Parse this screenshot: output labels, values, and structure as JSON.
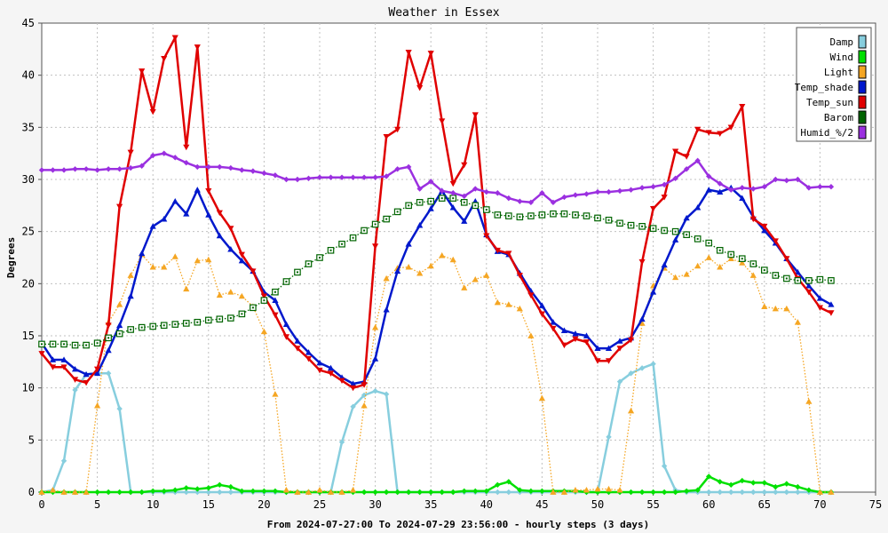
{
  "chart_data": {
    "type": "line",
    "title": "Weather in Essex",
    "ylabel": "Degrees",
    "xlabel": "From 2024-07-27:00 To 2024-07-29 23:56:00 - hourly steps (3 days)",
    "xlim": [
      0,
      75
    ],
    "ylim": [
      0,
      45
    ],
    "xticks": [
      0,
      5,
      10,
      15,
      20,
      25,
      30,
      35,
      40,
      45,
      50,
      55,
      60,
      65,
      70,
      75
    ],
    "yticks": [
      0,
      5,
      10,
      15,
      20,
      25,
      30,
      35,
      40,
      45
    ],
    "grid": true,
    "legend_position": "top-right",
    "series": [
      {
        "name": "Damp",
        "color": "#87CEDE",
        "marker": "diamond",
        "style": "solid",
        "x": [
          0,
          1,
          2,
          3,
          4,
          5,
          6,
          7,
          8,
          9,
          10,
          11,
          12,
          13,
          14,
          15,
          16,
          17,
          18,
          19,
          20,
          21,
          22,
          23,
          24,
          25,
          26,
          27,
          28,
          29,
          30,
          31,
          32,
          33,
          34,
          35,
          36,
          37,
          38,
          39,
          40,
          41,
          42,
          43,
          44,
          45,
          46,
          47,
          48,
          49,
          50,
          51,
          52,
          53,
          54,
          55,
          56,
          57,
          58,
          59,
          60,
          61,
          62,
          63,
          64,
          65,
          66,
          67,
          68,
          69,
          70,
          71
        ],
        "values": [
          0,
          0.2,
          3,
          9.8,
          11.3,
          11.4,
          11.4,
          8,
          0,
          0,
          0,
          0,
          0,
          0,
          0,
          0,
          0,
          0,
          0,
          0,
          0,
          0,
          0,
          0,
          0,
          0,
          0,
          4.8,
          8.2,
          9.3,
          9.7,
          9.4,
          0,
          0,
          0,
          0,
          0,
          0,
          0,
          0,
          0,
          0,
          0,
          0,
          0,
          0,
          0,
          0,
          0,
          0,
          0,
          5.3,
          10.6,
          11.4,
          11.9,
          12.3,
          2.5,
          0.2,
          0,
          0,
          0,
          0,
          0,
          0,
          0,
          0,
          0,
          0,
          0,
          0,
          0,
          0
        ]
      },
      {
        "name": "Wind",
        "color": "#00E000",
        "marker": "diamond",
        "style": "solid",
        "x": [
          0,
          1,
          2,
          3,
          4,
          5,
          6,
          7,
          8,
          9,
          10,
          11,
          12,
          13,
          14,
          15,
          16,
          17,
          18,
          19,
          20,
          21,
          22,
          23,
          24,
          25,
          26,
          27,
          28,
          29,
          30,
          31,
          32,
          33,
          34,
          35,
          36,
          37,
          38,
          39,
          40,
          41,
          42,
          43,
          44,
          45,
          46,
          47,
          48,
          49,
          50,
          51,
          52,
          53,
          54,
          55,
          56,
          57,
          58,
          59,
          60,
          61,
          62,
          63,
          64,
          65,
          66,
          67,
          68,
          69,
          70,
          71
        ],
        "values": [
          0,
          0,
          0,
          0,
          0,
          0,
          0,
          0,
          0,
          0,
          0.1,
          0.1,
          0.2,
          0.4,
          0.3,
          0.4,
          0.7,
          0.5,
          0.1,
          0.1,
          0.1,
          0.1,
          0,
          0,
          0,
          0,
          0,
          0,
          0,
          0,
          0,
          0,
          0,
          0,
          0,
          0,
          0,
          0,
          0.1,
          0.1,
          0.1,
          0.7,
          1,
          0.2,
          0.1,
          0.1,
          0.1,
          0.1,
          0.1,
          0,
          0,
          0,
          0,
          0,
          0,
          0,
          0,
          0,
          0.1,
          0.2,
          1.5,
          1,
          0.7,
          1.1,
          0.9,
          0.9,
          0.5,
          0.8,
          0.5,
          0.2,
          0,
          0
        ]
      },
      {
        "name": "Light",
        "color": "#F5A623",
        "marker": "triangle",
        "style": "dotted",
        "x": [
          0,
          1,
          2,
          3,
          4,
          5,
          6,
          7,
          8,
          9,
          10,
          11,
          12,
          13,
          14,
          15,
          16,
          17,
          18,
          19,
          20,
          21,
          22,
          23,
          24,
          25,
          26,
          27,
          28,
          29,
          30,
          31,
          32,
          33,
          34,
          35,
          36,
          37,
          38,
          39,
          40,
          41,
          42,
          43,
          44,
          45,
          46,
          47,
          48,
          49,
          50,
          51,
          52,
          53,
          54,
          55,
          56,
          57,
          58,
          59,
          60,
          61,
          62,
          63,
          64,
          65,
          66,
          67,
          68,
          69,
          70,
          71
        ],
        "values": [
          0,
          0.2,
          0,
          0,
          0,
          8.3,
          16.3,
          18,
          20.8,
          22.8,
          21.6,
          21.6,
          22.6,
          19.5,
          22.2,
          22.3,
          18.9,
          19.2,
          18.8,
          17.8,
          15.4,
          9.4,
          0.2,
          0,
          0,
          0.2,
          0,
          0,
          0.2,
          8.3,
          15.8,
          20.5,
          21.5,
          21.6,
          21,
          21.7,
          22.7,
          22.3,
          19.6,
          20.4,
          20.8,
          18.2,
          18,
          17.6,
          15,
          9,
          0,
          0,
          0.2,
          0.2,
          0.3,
          0.3,
          0.2,
          7.8,
          16.2,
          19.8,
          21.5,
          20.6,
          20.9,
          21.7,
          22.5,
          21.6,
          22.4,
          22,
          20.8,
          17.8,
          17.6,
          17.6,
          16.3,
          8.7,
          0,
          0
        ]
      },
      {
        "name": "Temp_shade",
        "color": "#0018CC",
        "marker": "triangle",
        "style": "solid",
        "x": [
          0,
          1,
          2,
          3,
          4,
          5,
          6,
          7,
          8,
          9,
          10,
          11,
          12,
          13,
          14,
          15,
          16,
          17,
          18,
          19,
          20,
          21,
          22,
          23,
          24,
          25,
          26,
          27,
          28,
          29,
          30,
          31,
          32,
          33,
          34,
          35,
          36,
          37,
          38,
          39,
          40,
          41,
          42,
          43,
          44,
          45,
          46,
          47,
          48,
          49,
          50,
          51,
          52,
          53,
          54,
          55,
          56,
          57,
          58,
          59,
          60,
          61,
          62,
          63,
          64,
          65,
          66,
          67,
          68,
          69,
          70,
          71
        ],
        "values": [
          14.3,
          12.7,
          12.7,
          11.8,
          11.3,
          11.4,
          13.6,
          16,
          18.8,
          22.9,
          25.5,
          26.2,
          27.9,
          26.7,
          29,
          26.6,
          24.6,
          23.3,
          22.2,
          21.2,
          19.2,
          18.4,
          16.1,
          14.5,
          13.4,
          12.4,
          11.9,
          11,
          10.4,
          10.6,
          12.8,
          17.5,
          21.2,
          23.8,
          25.6,
          27.2,
          28.9,
          27.3,
          26,
          27.9,
          24.7,
          23.1,
          22.8,
          21,
          19.3,
          17.9,
          16.3,
          15.5,
          15.2,
          15,
          13.8,
          13.8,
          14.5,
          14.8,
          16.6,
          19.2,
          21.8,
          24.2,
          26.3,
          27.3,
          29,
          28.8,
          29.2,
          28.2,
          26.4,
          25.1,
          23.9,
          22.4,
          21.1,
          19.8,
          18.6,
          18
        ]
      },
      {
        "name": "Temp_sun",
        "color": "#E00000",
        "marker": "triangle-down",
        "style": "solid",
        "x": [
          0,
          1,
          2,
          3,
          4,
          5,
          6,
          7,
          8,
          9,
          10,
          11,
          12,
          13,
          14,
          15,
          16,
          17,
          18,
          19,
          20,
          21,
          22,
          23,
          24,
          25,
          26,
          27,
          28,
          29,
          30,
          31,
          32,
          33,
          34,
          35,
          36,
          37,
          38,
          39,
          40,
          41,
          42,
          43,
          44,
          45,
          46,
          47,
          48,
          49,
          50,
          51,
          52,
          53,
          54,
          55,
          56,
          57,
          58,
          59,
          60,
          61,
          62,
          63,
          64,
          65,
          66,
          67,
          68,
          69,
          70,
          71
        ],
        "values": [
          13.3,
          12,
          12,
          10.8,
          10.5,
          11.8,
          16,
          27.4,
          32.6,
          40.4,
          36.5,
          41.6,
          43.6,
          33.1,
          42.7,
          28.9,
          26.8,
          25.3,
          22.8,
          21.2,
          18.8,
          17,
          14.9,
          13.8,
          12.8,
          11.7,
          11.4,
          10.7,
          10,
          10.3,
          23.6,
          34.1,
          34.8,
          42.2,
          38.8,
          42.1,
          35.6,
          29.6,
          31.4,
          36.2,
          24.6,
          23.2,
          22.9,
          20.8,
          18.9,
          17.1,
          15.7,
          14.1,
          14.7,
          14.4,
          12.6,
          12.6,
          13.8,
          14.6,
          22.1,
          27.2,
          28.3,
          32.7,
          32.2,
          34.8,
          34.5,
          34.4,
          35,
          37,
          26.2,
          25.5,
          24.1,
          22.4,
          20.5,
          19.2,
          17.7,
          17.2
        ]
      },
      {
        "name": "Barom",
        "color": "#006400",
        "marker": "square",
        "style": "dotted",
        "x": [
          0,
          1,
          2,
          3,
          4,
          5,
          6,
          7,
          8,
          9,
          10,
          11,
          12,
          13,
          14,
          15,
          16,
          17,
          18,
          19,
          20,
          21,
          22,
          23,
          24,
          25,
          26,
          27,
          28,
          29,
          30,
          31,
          32,
          33,
          34,
          35,
          36,
          37,
          38,
          39,
          40,
          41,
          42,
          43,
          44,
          45,
          46,
          47,
          48,
          49,
          50,
          51,
          52,
          53,
          54,
          55,
          56,
          57,
          58,
          59,
          60,
          61,
          62,
          63,
          64,
          65,
          66,
          67,
          68,
          69,
          70,
          71
        ],
        "values": [
          14.2,
          14.2,
          14.2,
          14.1,
          14.1,
          14.3,
          14.8,
          15.2,
          15.6,
          15.8,
          15.9,
          16,
          16.1,
          16.2,
          16.3,
          16.5,
          16.6,
          16.7,
          17.1,
          17.7,
          18.4,
          19.2,
          20.2,
          21.1,
          21.9,
          22.5,
          23.2,
          23.8,
          24.4,
          25.1,
          25.7,
          26.2,
          26.9,
          27.5,
          27.8,
          27.9,
          28.2,
          28.2,
          27.8,
          27.5,
          27.1,
          26.6,
          26.5,
          26.4,
          26.5,
          26.6,
          26.7,
          26.7,
          26.6,
          26.5,
          26.3,
          26.1,
          25.8,
          25.6,
          25.5,
          25.3,
          25.1,
          25,
          24.7,
          24.3,
          23.9,
          23.2,
          22.8,
          22.4,
          21.9,
          21.3,
          20.8,
          20.5,
          20.3,
          20.3,
          20.4,
          20.3
        ]
      },
      {
        "name": "Humid_%/2",
        "color": "#9B30E0",
        "marker": "diamond",
        "style": "solid",
        "x": [
          0,
          1,
          2,
          3,
          4,
          5,
          6,
          7,
          8,
          9,
          10,
          11,
          12,
          13,
          14,
          15,
          16,
          17,
          18,
          19,
          20,
          21,
          22,
          23,
          24,
          25,
          26,
          27,
          28,
          29,
          30,
          31,
          32,
          33,
          34,
          35,
          36,
          37,
          38,
          39,
          40,
          41,
          42,
          43,
          44,
          45,
          46,
          47,
          48,
          49,
          50,
          51,
          52,
          53,
          54,
          55,
          56,
          57,
          58,
          59,
          60,
          61,
          62,
          63,
          64,
          65,
          66,
          67,
          68,
          69,
          70,
          71
        ],
        "values": [
          30.9,
          30.9,
          30.9,
          31,
          31,
          30.9,
          31,
          31,
          31.1,
          31.3,
          32.3,
          32.5,
          32.1,
          31.6,
          31.2,
          31.2,
          31.2,
          31.1,
          30.9,
          30.8,
          30.6,
          30.4,
          30,
          30,
          30.1,
          30.2,
          30.2,
          30.2,
          30.2,
          30.2,
          30.2,
          30.3,
          31,
          31.2,
          29.1,
          29.8,
          28.9,
          28.7,
          28.4,
          29.1,
          28.8,
          28.7,
          28.2,
          27.9,
          27.8,
          28.7,
          27.8,
          28.3,
          28.5,
          28.6,
          28.8,
          28.8,
          28.9,
          29,
          29.2,
          29.3,
          29.5,
          30.1,
          31,
          31.8,
          30.3,
          29.6,
          29,
          29.2,
          29.1,
          29.3,
          30,
          29.9,
          30,
          29.2,
          29.3,
          29.3
        ]
      }
    ]
  }
}
